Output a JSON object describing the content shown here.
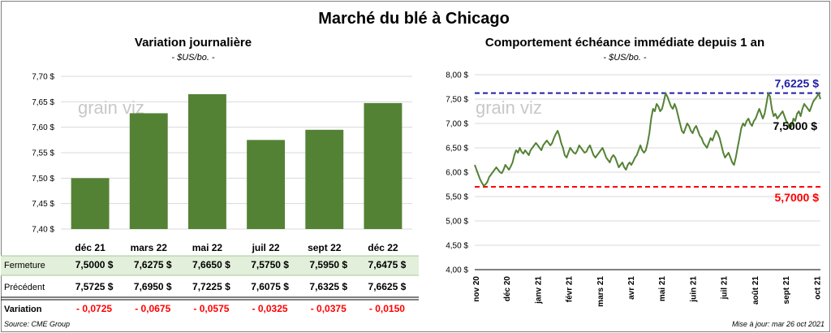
{
  "title": "Marché du blé à Chicago",
  "left": {
    "subtitle": "Variation journalière",
    "unit": "- $US/bo. -"
  },
  "right": {
    "subtitle": "Comportement  échéance immédiate depuis 1 an",
    "unit": "- $US/bo. -"
  },
  "watermark": "grain viz",
  "table": {
    "row_labels": [
      "Fermeture",
      "Précédent",
      "Variation"
    ],
    "fermeture": [
      "7,5000  $",
      "7,6275  $",
      "7,6650  $",
      "7,5750  $",
      "7,5950  $",
      "7,6475  $"
    ],
    "precedent": [
      "7,5725  $",
      "7,6950  $",
      "7,7225  $",
      "7,6075  $",
      "7,6325  $",
      "7,6625  $"
    ],
    "variation": [
      "- 0,0725",
      "- 0,0675",
      "- 0,0575",
      "- 0,0325",
      "- 0,0375",
      "- 0,0150"
    ]
  },
  "footer": {
    "source": "Source: CME Group",
    "updated": "Mise à jour: mar 26 oct 2021"
  },
  "colors": {
    "bar": "#548235",
    "line": "#548235",
    "upper_ref": "#1f1fa5",
    "lower_ref": "#ff0000",
    "table_highlight": "#e2efda",
    "negative": "#ff0000"
  },
  "chart_data": [
    {
      "type": "bar",
      "title": "Variation journalière",
      "categories": [
        "déc 21",
        "mars 22",
        "mai 22",
        "juil 22",
        "sept 22",
        "déc 22"
      ],
      "values": [
        7.5,
        7.6275,
        7.665,
        7.575,
        7.595,
        7.6475
      ],
      "ylim": [
        7.4,
        7.7
      ],
      "yticks": [
        "7,40 $",
        "7,45 $",
        "7,50 $",
        "7,55 $",
        "7,60 $",
        "7,65 $",
        "7,70 $"
      ],
      "ytick_values": [
        7.4,
        7.45,
        7.5,
        7.55,
        7.6,
        7.65,
        7.7
      ],
      "grid": true,
      "legend": "none"
    },
    {
      "type": "line",
      "title": "Comportement  échéance immédiate depuis 1 an",
      "ylim": [
        4.0,
        8.0
      ],
      "yticks": [
        "4,00 $",
        "4,50 $",
        "5,00 $",
        "5,50 $",
        "6,00 $",
        "6,50 $",
        "7,00 $",
        "7,50 $",
        "8,00 $"
      ],
      "ytick_values": [
        4.0,
        4.5,
        5.0,
        5.5,
        6.0,
        6.5,
        7.0,
        7.5,
        8.0
      ],
      "xticks": [
        "nov 20",
        "déc 20",
        "janv 21",
        "févr 21",
        "mars 21",
        "avr 21",
        "mai 21",
        "juin 21",
        "juil 21",
        "août 21",
        "sept 21",
        "oct 21"
      ],
      "grid": true,
      "reference_lines": [
        {
          "value": 7.6225,
          "label": "7,6225 $"
        },
        {
          "value": 5.7,
          "label": "5,7000 $"
        }
      ],
      "last_label": "7,5000 $",
      "series": [
        {
          "values": [
            6.15,
            6.05,
            5.95,
            5.85,
            5.78,
            5.72,
            5.75,
            5.8,
            5.9,
            5.95,
            6.0,
            6.05,
            6.1,
            6.05,
            6.0,
            5.98,
            6.05,
            6.15,
            6.1,
            6.05,
            6.12,
            6.2,
            6.35,
            6.45,
            6.4,
            6.5,
            6.42,
            6.38,
            6.45,
            6.4,
            6.35,
            6.45,
            6.5,
            6.55,
            6.6,
            6.55,
            6.5,
            6.45,
            6.55,
            6.6,
            6.65,
            6.6,
            6.55,
            6.6,
            6.7,
            6.78,
            6.85,
            6.75,
            6.6,
            6.5,
            6.35,
            6.3,
            6.4,
            6.5,
            6.45,
            6.4,
            6.38,
            6.45,
            6.55,
            6.5,
            6.45,
            6.4,
            6.42,
            6.5,
            6.55,
            6.45,
            6.35,
            6.3,
            6.35,
            6.4,
            6.45,
            6.5,
            6.4,
            6.3,
            6.25,
            6.2,
            6.3,
            6.35,
            6.3,
            6.2,
            6.1,
            6.15,
            6.2,
            6.1,
            6.05,
            6.15,
            6.2,
            6.15,
            6.22,
            6.3,
            6.35,
            6.45,
            6.55,
            6.45,
            6.4,
            6.45,
            6.6,
            6.8,
            7.1,
            7.3,
            7.25,
            7.4,
            7.35,
            7.25,
            7.3,
            7.45,
            7.62,
            7.55,
            7.45,
            7.35,
            7.3,
            7.4,
            7.3,
            7.15,
            7.0,
            6.85,
            6.8,
            6.9,
            7.0,
            6.95,
            6.85,
            6.8,
            6.9,
            6.95,
            6.85,
            6.75,
            6.7,
            6.6,
            6.55,
            6.5,
            6.6,
            6.7,
            6.65,
            6.75,
            6.85,
            6.8,
            6.7,
            6.55,
            6.4,
            6.3,
            6.35,
            6.4,
            6.3,
            6.2,
            6.15,
            6.3,
            6.5,
            6.7,
            6.9,
            7.0,
            6.95,
            7.05,
            7.1,
            7.0,
            6.95,
            7.05,
            7.1,
            7.2,
            7.3,
            7.2,
            7.1,
            7.2,
            7.4,
            7.62,
            7.55,
            7.3,
            7.15,
            7.2,
            7.1,
            7.15,
            7.2,
            7.25,
            7.15,
            7.05,
            7.0,
            6.9,
            6.95,
            7.1,
            7.05,
            7.2,
            7.25,
            7.15,
            7.3,
            7.4,
            7.35,
            7.3,
            7.25,
            7.35,
            7.45,
            7.5,
            7.55,
            7.62,
            7.5
          ]
        }
      ]
    }
  ]
}
